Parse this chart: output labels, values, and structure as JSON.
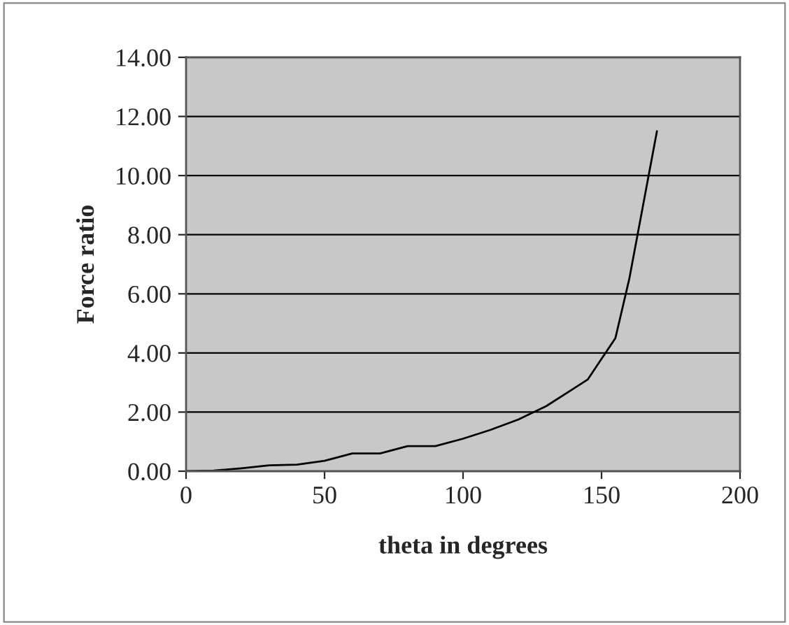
{
  "chart_data": {
    "type": "line",
    "xlabel": "theta in degrees",
    "ylabel": "Force ratio",
    "x": [
      0,
      10,
      20,
      30,
      40,
      50,
      60,
      70,
      80,
      90,
      100,
      110,
      120,
      130,
      140,
      145,
      150,
      155,
      160,
      165,
      170
    ],
    "series": [
      {
        "color": "#000000",
        "values": [
          0,
          0.02,
          0.1,
          0.2,
          0.22,
          0.35,
          0.6,
          0.6,
          0.85,
          0.85,
          1.1,
          1.4,
          1.75,
          2.2,
          2.8,
          3.1,
          3.8,
          4.5,
          6.5,
          9.0,
          11.5
        ]
      }
    ],
    "xlim": [
      0,
      200
    ],
    "xticks": [
      0,
      50,
      100,
      150,
      200
    ],
    "ylim": [
      0,
      14
    ],
    "yticks": [
      {
        "value": 0,
        "label": "0.00"
      },
      {
        "value": 2,
        "label": "2.00"
      },
      {
        "value": 4,
        "label": "4.00"
      },
      {
        "value": 6,
        "label": "6.00"
      },
      {
        "value": 8,
        "label": "8.00"
      },
      {
        "value": 10,
        "label": "10.00"
      },
      {
        "value": 12,
        "label": "12.00"
      },
      {
        "value": 14,
        "label": "14.00"
      }
    ],
    "grid": "y",
    "marker": "none",
    "line_style": "solid"
  }
}
